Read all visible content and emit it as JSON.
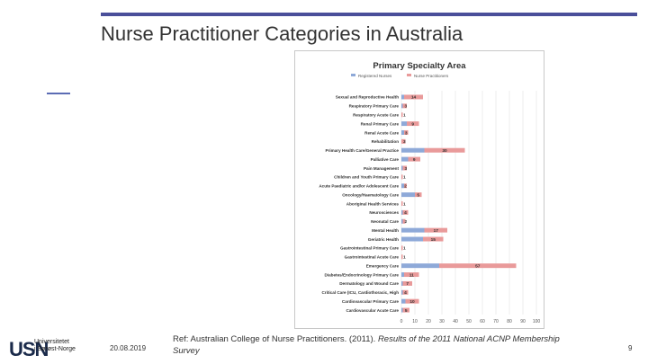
{
  "slide": {
    "title": "Nurse Practitioner Categories in Australia",
    "date": "20.08.2019",
    "page_number": "9",
    "reference_prefix": "Ref: Australian College of Nurse Practitioners. (2011). ",
    "reference_italic": "Results of the 2011 National ACNP Membership Survey",
    "logo": {
      "mark": "USN",
      "line1": "Universitetet",
      "line2": "i Sørøst-Norge"
    },
    "colors": {
      "accent": "#4a4f9a",
      "registered_nurses": "#8ea9d8",
      "nurse_practitioners": "#e99a9a"
    }
  },
  "chart_data": {
    "type": "bar",
    "orientation": "horizontal",
    "stacked": true,
    "title": "Primary Specialty Area",
    "xlim": [
      0,
      100
    ],
    "xticks": [
      0,
      10,
      20,
      30,
      40,
      50,
      60,
      70,
      80,
      90,
      100
    ],
    "grid": true,
    "legend": "top",
    "categories": [
      "Sexual and Reproductive Health",
      "Respiratory Primary Care",
      "Respiratory Acute Care",
      "Renal Primary Care",
      "Renal Acute Care",
      "Rehabilitation",
      "Primary Health Care/General Practice",
      "Palliative Care",
      "Pain Management",
      "Children and Youth Primary Care",
      "Acute Paediatric and/or Adolescent Care",
      "Oncology/Haematology Care",
      "Aboriginal Health Services",
      "Neurosciences",
      "Neonatal Care",
      "Mental Health",
      "Geriatric Health",
      "Gastrointestinal Primary Care",
      "Gastrointestinal Acute Care",
      "Emergency Care",
      "Diabetes/Endocrinology Primary Care",
      "Dermatology and Wound Care",
      "Critical Care (ICU, Cardiothoracic, High",
      "Cardiovascular Primary Care",
      "Cardiovascular Acute Care"
    ],
    "series": [
      {
        "name": "Registered Nurses",
        "values": [
          2,
          1,
          0,
          4,
          2,
          0,
          17,
          5,
          1,
          0,
          2,
          10,
          0,
          1,
          1,
          17,
          16,
          0,
          0,
          28,
          2,
          1,
          1,
          3,
          1
        ]
      },
      {
        "name": "Nurse Practitioners",
        "values": [
          14,
          3,
          1,
          9,
          3,
          3,
          30,
          9,
          3,
          1,
          2,
          5,
          1,
          4,
          2,
          17,
          15,
          1,
          1,
          57,
          11,
          7,
          4,
          10,
          5
        ]
      }
    ],
    "data_labels": [
      "14",
      "3",
      "1",
      "9",
      "3",
      "3",
      "30",
      "9",
      "3",
      "1",
      "2",
      "5",
      "1",
      "4",
      "2",
      "17",
      "15",
      "1",
      "1",
      "57",
      "11",
      "7",
      "4",
      "10",
      "5"
    ]
  }
}
